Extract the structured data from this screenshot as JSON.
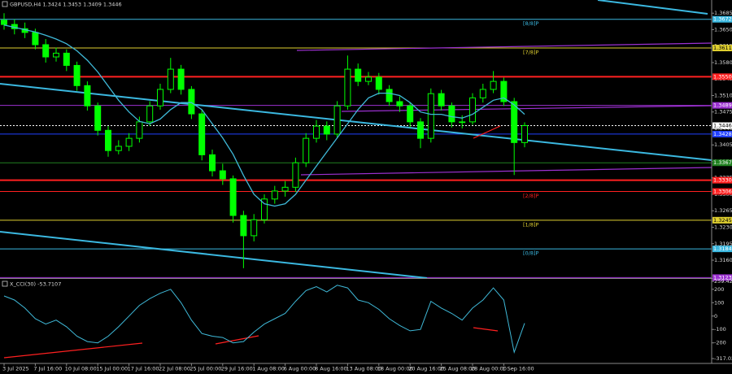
{
  "chart_data": {
    "type": "candlestick",
    "title": "GBPUSD,H4 1.3424 1.3453 1.3409 1.3446",
    "categories": [
      "3 Jul 2025",
      null,
      null,
      "7 Jul 16:00",
      null,
      null,
      "10 Jul 08:00",
      null,
      null,
      "15 Jul 00:00",
      null,
      null,
      "17 Jul 16:00",
      null,
      null,
      "22 Jul 08:00",
      null,
      null,
      "25 Jul 00:00",
      null,
      null,
      "29 Jul 16:00",
      null,
      null,
      "1 Aug 08:00",
      null,
      null,
      "6 Aug 00:00",
      null,
      null,
      "8 Aug 16:00",
      null,
      null,
      "13 Aug 08:00",
      null,
      null,
      "18 Aug 00:00",
      null,
      null,
      "20 Aug 16:00",
      null,
      null,
      "25 Aug 08:00",
      null,
      null,
      "28 Aug 00:00",
      null,
      null,
      "1 Sep 16:00",
      null,
      null
    ],
    "open": [
      1.367,
      1.3661,
      1.3652,
      1.3644,
      1.3618,
      1.3592,
      1.36,
      1.3574,
      1.3531,
      1.3488,
      1.3436,
      1.3393,
      1.3402,
      1.3419,
      1.3454,
      1.3488,
      1.3523,
      1.3566,
      1.3523,
      1.3471,
      1.3384,
      1.335,
      1.3333,
      1.3255,
      1.3212,
      1.3246,
      1.329,
      1.3307,
      1.3315,
      1.3367,
      1.3419,
      1.3445,
      1.3428,
      1.3488,
      1.3566,
      1.354,
      1.3549,
      1.3523,
      1.3497,
      1.3488,
      1.3454,
      1.3419,
      1.3514,
      1.3488,
      1.3454,
      1.3454,
      1.3505,
      1.3523,
      1.354,
      1.3497,
      1.341
    ],
    "high": [
      1.3685,
      1.3672,
      1.3665,
      1.3652,
      1.363,
      1.3612,
      1.3608,
      1.3582,
      1.354,
      1.3495,
      1.3445,
      1.3415,
      1.343,
      1.3465,
      1.3498,
      1.3535,
      1.359,
      1.3575,
      1.353,
      1.348,
      1.3395,
      1.3365,
      1.334,
      1.3265,
      1.3258,
      1.33,
      1.3318,
      1.3328,
      1.3378,
      1.343,
      1.3458,
      1.3455,
      1.3498,
      1.3595,
      1.3578,
      1.356,
      1.3558,
      1.3532,
      1.3508,
      1.3495,
      1.3462,
      1.3525,
      1.3522,
      1.3495,
      1.3468,
      1.3515,
      1.3535,
      1.3562,
      1.3548,
      1.3505,
      1.3453
    ],
    "low": [
      1.365,
      1.364,
      1.3632,
      1.3608,
      1.358,
      1.3582,
      1.3562,
      1.352,
      1.3478,
      1.3425,
      1.338,
      1.3385,
      1.3392,
      1.341,
      1.3445,
      1.348,
      1.3515,
      1.3512,
      1.346,
      1.3372,
      1.3338,
      1.332,
      1.324,
      1.3143,
      1.32,
      1.3238,
      1.328,
      1.3295,
      1.3305,
      1.3358,
      1.341,
      1.3415,
      1.342,
      1.348,
      1.353,
      1.3532,
      1.3512,
      1.3488,
      1.3475,
      1.3442,
      1.3398,
      1.341,
      1.3478,
      1.3442,
      1.344,
      1.3448,
      1.3495,
      1.3515,
      1.3488,
      1.3341,
      1.34
    ],
    "close": [
      1.3661,
      1.3652,
      1.3644,
      1.3618,
      1.3592,
      1.36,
      1.3574,
      1.3531,
      1.3488,
      1.3436,
      1.3393,
      1.3402,
      1.3419,
      1.3454,
      1.3488,
      1.3523,
      1.3566,
      1.3523,
      1.3471,
      1.3384,
      1.335,
      1.3333,
      1.3255,
      1.3212,
      1.3246,
      1.329,
      1.3307,
      1.3315,
      1.3367,
      1.3419,
      1.3445,
      1.3428,
      1.3488,
      1.3566,
      1.354,
      1.3549,
      1.3523,
      1.3497,
      1.3488,
      1.3454,
      1.3419,
      1.3514,
      1.3488,
      1.3454,
      1.3454,
      1.3505,
      1.3523,
      1.354,
      1.3497,
      1.341,
      1.3446
    ],
    "color": "#00ff00",
    "ma": {
      "color": "#3fb9d8",
      "values": [
        1.366,
        1.3655,
        1.365,
        1.3645,
        1.3638,
        1.363,
        1.362,
        1.3605,
        1.3585,
        1.356,
        1.353,
        1.35,
        1.3475,
        1.3455,
        1.345,
        1.346,
        1.348,
        1.3495,
        1.3495,
        1.348,
        1.345,
        1.342,
        1.3385,
        1.334,
        1.33,
        1.328,
        1.3275,
        1.328,
        1.33,
        1.333,
        1.336,
        1.339,
        1.342,
        1.345,
        1.348,
        1.3505,
        1.3515,
        1.3515,
        1.351,
        1.3495,
        1.3475,
        1.347,
        1.347,
        1.3465,
        1.3462,
        1.347,
        1.3485,
        1.35,
        1.3505,
        1.349,
        1.347
      ]
    },
    "ylim": [
      1.3122,
      1.3713
    ],
    "yticks": [
      1.3685,
      {
        "value": 1.365,
        "label": "1.3650"
      },
      1.3615,
      {
        "value": 1.358,
        "label": "1.3580"
      },
      1.3545,
      {
        "value": 1.351,
        "label": "1.3510"
      },
      1.3475,
      {
        "value": 1.344,
        "label": "1.3440"
      },
      1.3405,
      {
        "value": 1.337,
        "label": "1.3370"
      },
      1.3335,
      {
        "value": 1.33,
        "label": "1.3300"
      },
      1.3265,
      {
        "value": 1.323,
        "label": "1.3230"
      },
      1.3195,
      {
        "value": 1.316,
        "label": "1.3160"
      }
    ],
    "levels": [
      {
        "value": 1.3672,
        "color": "#3bb8e0",
        "name": "[8/8]P"
      },
      {
        "value": 1.3611,
        "color": "#e0d030",
        "name": "[7/8]P"
      },
      {
        "value": 1.355,
        "label": "1.3550",
        "color": "#ff2020"
      },
      {
        "value": 1.3489,
        "color": "#9b30d0"
      },
      {
        "value": 1.3446,
        "color": "#ffffff"
      },
      {
        "value": 1.3428,
        "color": "#2040ff"
      },
      {
        "value": 1.3367,
        "color": "#208020"
      },
      {
        "value": 1.333,
        "label": "1.3330",
        "color": "#ff2020"
      },
      {
        "value": 1.3306,
        "color": "#ff2020",
        "name": "[2/8]P"
      },
      {
        "value": 1.3245,
        "color": "#e0d030",
        "name": "[1/8]P"
      },
      {
        "value": 1.3184,
        "color": "#3bb8e0",
        "name": "[0/8]P"
      },
      {
        "value": 1.3123,
        "color": "#9b30d0"
      }
    ],
    "indicator": {
      "title": "X_CCI(30) -53.7107",
      "color": "#3fb9d8",
      "values": [
        150,
        120,
        60,
        -20,
        -60,
        -30,
        -80,
        -150,
        -190,
        -200,
        -150,
        -80,
        0,
        80,
        130,
        170,
        200,
        100,
        -30,
        -130,
        -150,
        -160,
        -200,
        -190,
        -120,
        -60,
        -20,
        20,
        110,
        190,
        220,
        180,
        230,
        210,
        120,
        100,
        50,
        -20,
        -70,
        -110,
        -100,
        110,
        60,
        20,
        -30,
        60,
        120,
        210,
        120,
        -270,
        -53.7107
      ],
      "y2lim": [
        -317.0211,
        259.4211
      ],
      "y2ticks": [
        259.4211,
        200,
        100,
        0,
        -100,
        -200,
        -317.0211
      ]
    }
  }
}
